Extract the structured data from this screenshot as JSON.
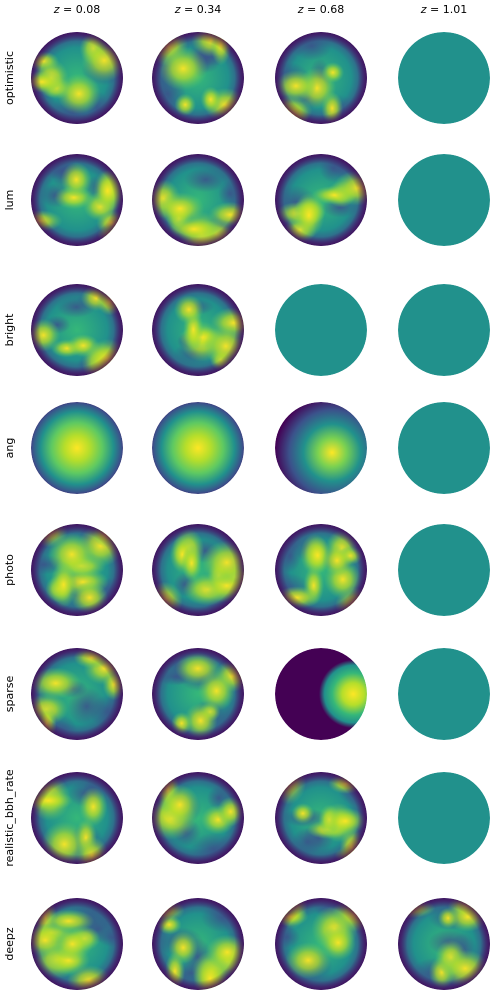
{
  "columns": [
    {
      "z_label": "z",
      "z_value": "= 0.08"
    },
    {
      "z_label": "z",
      "z_value": "= 0.34"
    },
    {
      "z_label": "z",
      "z_value": "= 0.68"
    },
    {
      "z_label": "z",
      "z_value": "= 1.01"
    }
  ],
  "rows": [
    {
      "label": "optimistic",
      "maps": [
        "hot-a",
        "hot-b",
        "hot-c",
        "flat"
      ]
    },
    {
      "label": "lum",
      "maps": [
        "hot-a",
        "hot-b",
        "hot-d",
        "flat"
      ]
    },
    {
      "label": "bright",
      "maps": [
        "hot-e",
        "hot-f",
        "flat",
        "flat"
      ]
    },
    {
      "label": "ang",
      "maps": [
        "center",
        "center",
        "offset",
        "flat"
      ]
    },
    {
      "label": "photo",
      "maps": [
        "hot-a",
        "hot-b",
        "hot-d",
        "flat"
      ]
    },
    {
      "label": "sparse",
      "maps": [
        "hot-g",
        "hot-h",
        "dipole",
        "flat"
      ]
    },
    {
      "label": "realistic_bbh_rate",
      "maps": [
        "hot-a",
        "hot-b",
        "hot-c",
        "flat"
      ]
    },
    {
      "label": "deepz",
      "maps": [
        "hot-i",
        "hot-j",
        "hot-k",
        "hot-l"
      ]
    }
  ],
  "palette": {
    "dark": "#440154",
    "blue": "#3b528b",
    "teal": "#21918c",
    "green": "#5ec962",
    "yellow": "#fde725",
    "flat": "#21918c"
  }
}
